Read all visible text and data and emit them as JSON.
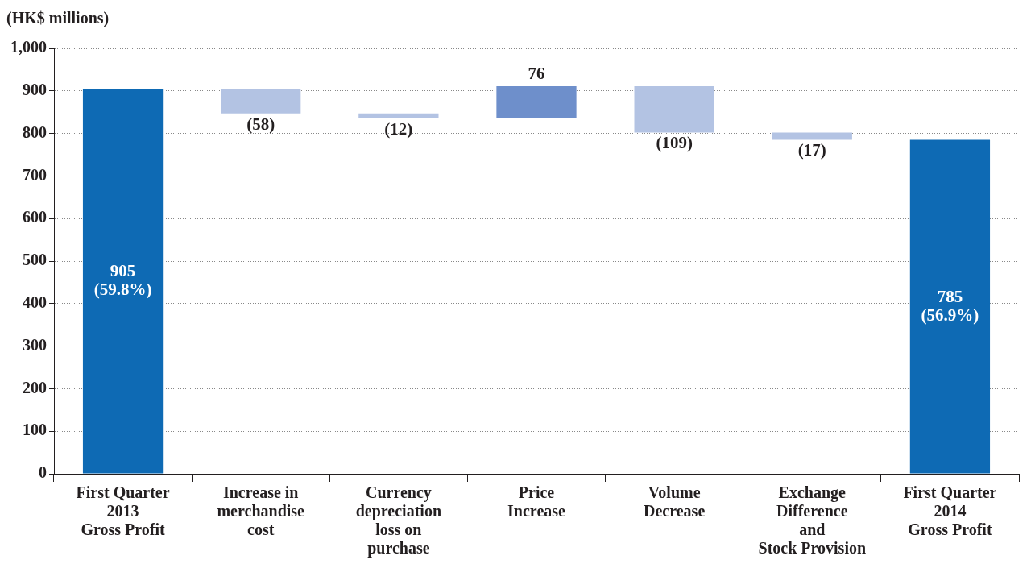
{
  "chart_data": {
    "type": "bar",
    "ylabel": "(HK$ millions)",
    "categories": [
      "First Quarter\n2013\nGross Profit",
      "Increase in\nmerchandise\ncost",
      "Currency\ndepreciation\nloss on\npurchase",
      "Price\nIncrease",
      "Volume\nDecrease",
      "Exchange\nDifference\nand\nStock Provision",
      "First Quarter\n2014\nGross Profit"
    ],
    "values": [
      905,
      -58,
      -12,
      76,
      -109,
      -17,
      785
    ],
    "base": [
      0,
      905,
      847,
      835,
      911,
      802,
      0
    ],
    "colors": [
      "#0e6ab4",
      "#b3c3e3",
      "#b3c3e3",
      "#6e8fcb",
      "#b3c3e3",
      "#b3c3e3",
      "#0e6ab4"
    ],
    "value_labels": [
      "905\n(59.8%)",
      "(58)",
      "(12)",
      "76",
      "(109)",
      "(17)",
      "785\n(56.9%)"
    ],
    "ylim": [
      0,
      1000
    ],
    "yticks": [
      0,
      100,
      200,
      300,
      400,
      500,
      600,
      700,
      800,
      900,
      {
        "value": 1000,
        "label": "1,000"
      }
    ],
    "grid": "y"
  }
}
